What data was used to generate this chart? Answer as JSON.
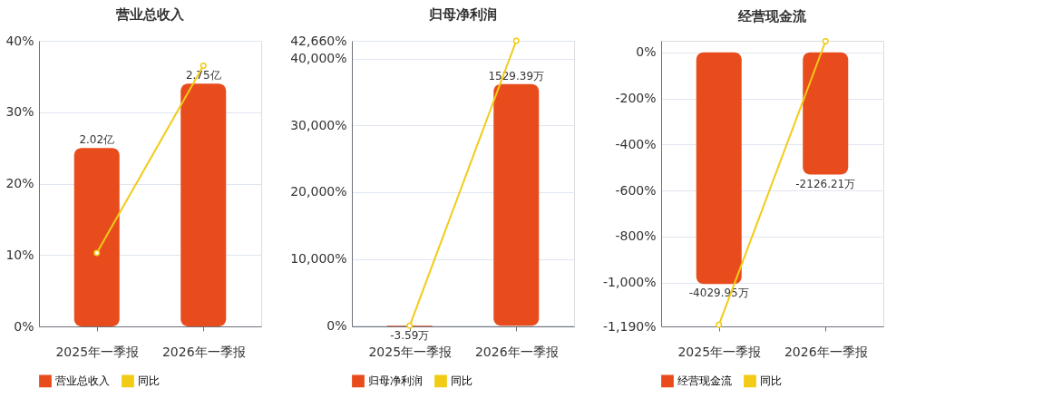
{
  "chart_data": [
    {
      "type": "bar",
      "title": "营业总收入",
      "categories": [
        "2025年一季报",
        "2026年一季报"
      ],
      "series": [
        {
          "name": "营业总收入",
          "axis": "y2",
          "color": "#e84c1d",
          "values": [
            2.02,
            2.75
          ],
          "value_labels": [
            "2.02亿",
            "2.75亿"
          ]
        },
        {
          "name": "同比",
          "type": "line",
          "color": "#f2cb16",
          "values": [
            10.3,
            36.5
          ],
          "marker": "circle"
        }
      ],
      "ylim": [
        0,
        40
      ],
      "yticks": [
        {
          "value": 0,
          "label": "0%"
        },
        {
          "value": 10,
          "label": "10%"
        },
        {
          "value": 20,
          "label": "20%"
        },
        {
          "value": 30,
          "label": "30%"
        },
        {
          "value": 40,
          "label": "40%"
        }
      ],
      "y2lim": [
        0,
        3.235
      ],
      "grid": "y",
      "legend": "bottom",
      "tick_labels": "xy"
    },
    {
      "type": "bar",
      "title": "归母净利润",
      "categories": [
        "2025年一季报",
        "2026年一季报"
      ],
      "series": [
        {
          "name": "归母净利润",
          "axis": "y2",
          "color": "#e84c1d",
          "values": [
            -3.59,
            1529.39
          ],
          "value_labels": [
            "-3.59万",
            "1529.39万"
          ]
        },
        {
          "name": "同比",
          "type": "line",
          "color": "#f2cb16",
          "values": [
            0,
            42660
          ],
          "marker": "circle"
        }
      ],
      "ylim": [
        -95,
        42660
      ],
      "yticks": [
        {
          "value": 0,
          "label": "0%"
        },
        {
          "value": 10000,
          "label": "10,000%"
        },
        {
          "value": 20000,
          "label": "20,000%"
        },
        {
          "value": 30000,
          "label": "30,000%"
        },
        {
          "value": 40000,
          "label": "40,000%"
        },
        {
          "value": 42660,
          "label": "42,660%"
        }
      ],
      "y2lim": [
        -4,
        1803
      ],
      "grid": "y",
      "legend": "bottom",
      "tick_labels": "xy"
    },
    {
      "type": "bar",
      "title": "经营现金流",
      "categories": [
        "2025年一季报",
        "2026年一季报"
      ],
      "series": [
        {
          "name": "经营现金流",
          "axis": "y2",
          "color": "#e84c1d",
          "values": [
            -4029.95,
            -2126.21
          ],
          "value_labels": [
            "-4029.95万",
            "-2126.21万"
          ]
        },
        {
          "name": "同比",
          "type": "line",
          "color": "#f2cb16",
          "values": [
            -1183,
            48
          ],
          "marker": "circle"
        }
      ],
      "ylim": [
        -1190,
        50
      ],
      "yticks": [
        {
          "value": -1190,
          "label": "-1,190%"
        },
        {
          "value": -1000,
          "label": "-1,000%"
        },
        {
          "value": -800,
          "label": "-800%"
        },
        {
          "value": -600,
          "label": "-600%"
        },
        {
          "value": -400,
          "label": "-400%"
        },
        {
          "value": -200,
          "label": "-200%"
        },
        {
          "value": 0,
          "label": "0%"
        }
      ],
      "y2lim": [
        -4767,
        200
      ],
      "grid": "y",
      "legend": "bottom",
      "tick_labels": "xy"
    }
  ]
}
